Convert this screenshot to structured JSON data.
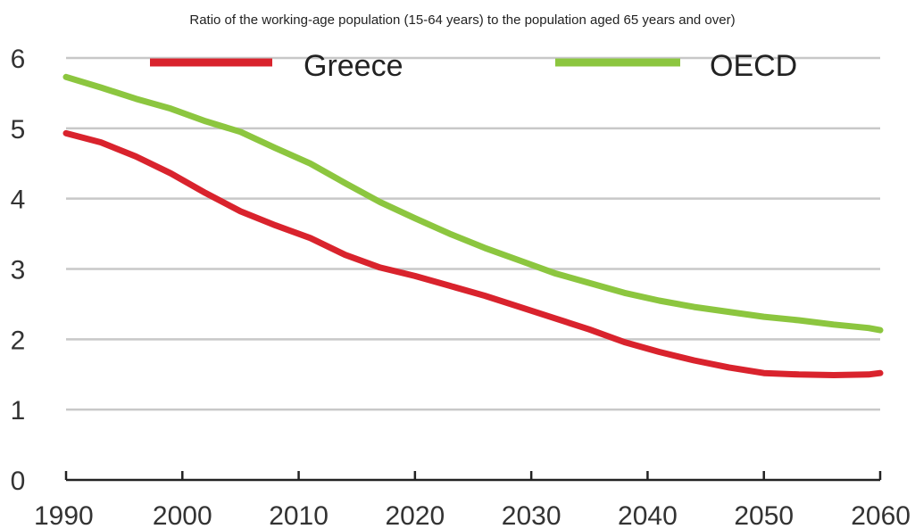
{
  "chart_data": {
    "type": "line",
    "title": "Ratio of the working-age population (15-64 years) to the population aged 65 years and over)",
    "xlabel": "",
    "ylabel": "",
    "xlim": [
      1990,
      2060
    ],
    "ylim": [
      0,
      6
    ],
    "x_ticks": [
      "1990",
      "2000",
      "2010",
      "2020",
      "2030",
      "2040",
      "2050",
      "2060"
    ],
    "y_ticks": [
      "0",
      "1",
      "2",
      "3",
      "4",
      "5",
      "6"
    ],
    "grid": "horizontal",
    "legend_position": "top",
    "x": [
      1990,
      1993,
      1996,
      1999,
      2002,
      2005,
      2008,
      2011,
      2014,
      2017,
      2020,
      2023,
      2026,
      2029,
      2032,
      2035,
      2038,
      2041,
      2044,
      2047,
      2050,
      2053,
      2056,
      2059,
      2060
    ],
    "series": [
      {
        "name": "Greece",
        "color": "#d9232d",
        "values": [
          4.93,
          4.8,
          4.6,
          4.36,
          4.08,
          3.82,
          3.62,
          3.44,
          3.2,
          3.02,
          2.9,
          2.76,
          2.62,
          2.46,
          2.3,
          2.14,
          1.96,
          1.82,
          1.7,
          1.6,
          1.52,
          1.5,
          1.49,
          1.5,
          1.52
        ]
      },
      {
        "name": "OECD",
        "color": "#8cc63f",
        "values": [
          5.73,
          5.58,
          5.42,
          5.28,
          5.1,
          4.95,
          4.72,
          4.5,
          4.22,
          3.95,
          3.72,
          3.5,
          3.3,
          3.12,
          2.94,
          2.8,
          2.66,
          2.55,
          2.46,
          2.39,
          2.32,
          2.27,
          2.21,
          2.16,
          2.13
        ]
      }
    ]
  }
}
